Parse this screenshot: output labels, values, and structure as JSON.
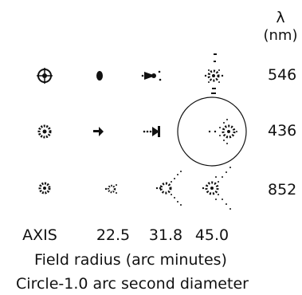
{
  "header": {
    "lambda_symbol": "λ",
    "unit": "(nm)"
  },
  "wavelengths": [
    "546",
    "436",
    "852"
  ],
  "columns": [
    "AXIS",
    "22.5",
    "31.8",
    "45.0"
  ],
  "xlabel": "Field radius (arc minutes)",
  "caption": "Circle-1.0 arc second diameter",
  "colors": {
    "ink": "#111111",
    "background": "#ffffff"
  }
}
